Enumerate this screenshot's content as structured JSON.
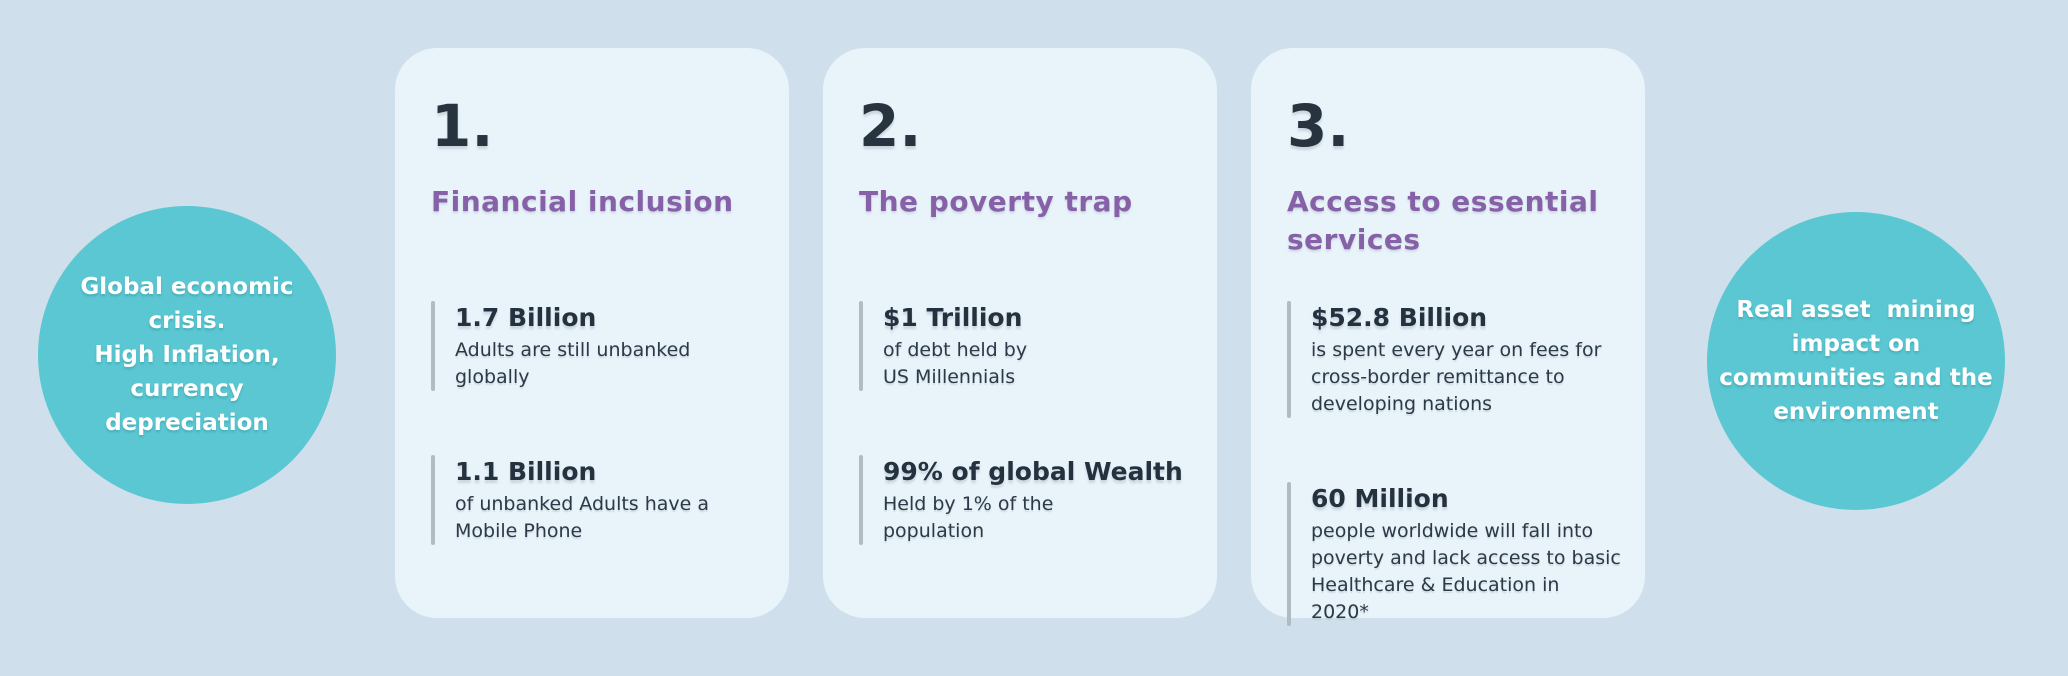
{
  "palette": {
    "background": "#cfe0ec",
    "card_background": "#e9f3fa",
    "circle_teal": "#5ac7d2",
    "heading_purple": "#8761a8",
    "text_dark_navy": "#24313f",
    "divider_gray": "#b2bbc3",
    "circle_text_white": "#ffffff"
  },
  "left_circle": {
    "lines": [
      "Global economic",
      "crisis.",
      "High Inflation,",
      "currency",
      "depreciation"
    ]
  },
  "right_circle": {
    "lines": [
      "Real asset  mining",
      "impact on",
      "communities and the",
      "environment"
    ]
  },
  "cards": [
    {
      "number": "1.",
      "title": "Financial inclusion",
      "stats": [
        {
          "value": "1.7 Billion",
          "desc": "Adults are still unbanked\nglobally"
        },
        {
          "value": "1.1 Billion",
          "desc": "of unbanked Adults have a\nMobile Phone"
        }
      ]
    },
    {
      "number": "2.",
      "title": "The poverty trap",
      "stats": [
        {
          "value": "$1 Trillion",
          "desc": "of debt held by\nUS Millennials"
        },
        {
          "value": "99% of global Wealth",
          "desc": "Held by 1% of the\npopulation"
        }
      ]
    },
    {
      "number": "3.",
      "title": "Access to essential\nservices",
      "stats": [
        {
          "value": "$52.8 Billion",
          "desc": "is spent every year on fees for\ncross-border remittance to\ndeveloping nations"
        },
        {
          "value": "60 Million",
          "desc": "people worldwide will fall into\npoverty and lack access to basic\nHealthcare & Education in 2020*"
        }
      ]
    }
  ]
}
